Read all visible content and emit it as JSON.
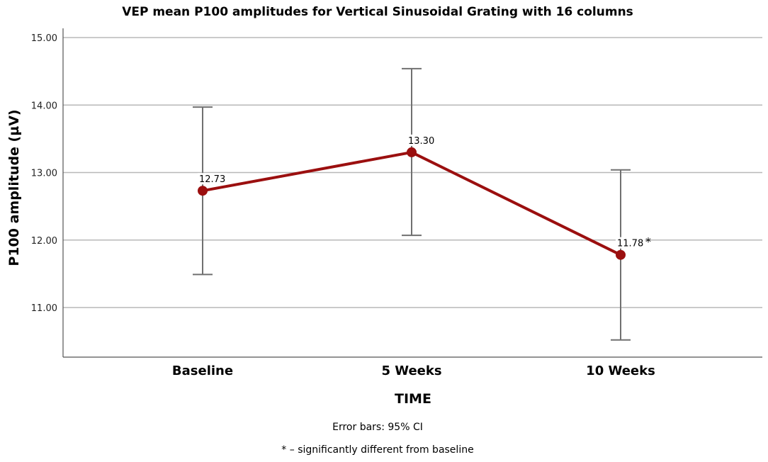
{
  "chart_data": {
    "type": "line",
    "title": "VEP mean P100 amplitudes for Vertical Sinusoidal Grating with 16 columns",
    "xlabel": "TIME",
    "ylabel": "P100 amplitude (µV)",
    "categories": [
      "Baseline",
      "5 Weeks",
      "10 Weeks"
    ],
    "ylim": [
      10.3,
      15.2
    ],
    "yticks": [
      11.0,
      12.0,
      13.0,
      14.0,
      15.0
    ],
    "ytick_labels": [
      "11.00",
      "12.00",
      "13.00",
      "14.00",
      "15.00"
    ],
    "grid": true,
    "series": [
      {
        "name": "Mean P100 amplitude",
        "color": "#9b0f0f",
        "values": [
          12.73,
          13.3,
          11.78
        ],
        "value_labels": [
          "12.73",
          "13.30",
          "11.78"
        ],
        "ci_lower": [
          11.49,
          12.07,
          10.52
        ],
        "ci_upper": [
          13.97,
          14.54,
          13.04
        ]
      }
    ],
    "annotations": [
      {
        "category": "10 Weeks",
        "text": "*"
      }
    ],
    "notes": [
      "Error bars: 95% CI",
      "* – significantly different from baseline"
    ]
  }
}
